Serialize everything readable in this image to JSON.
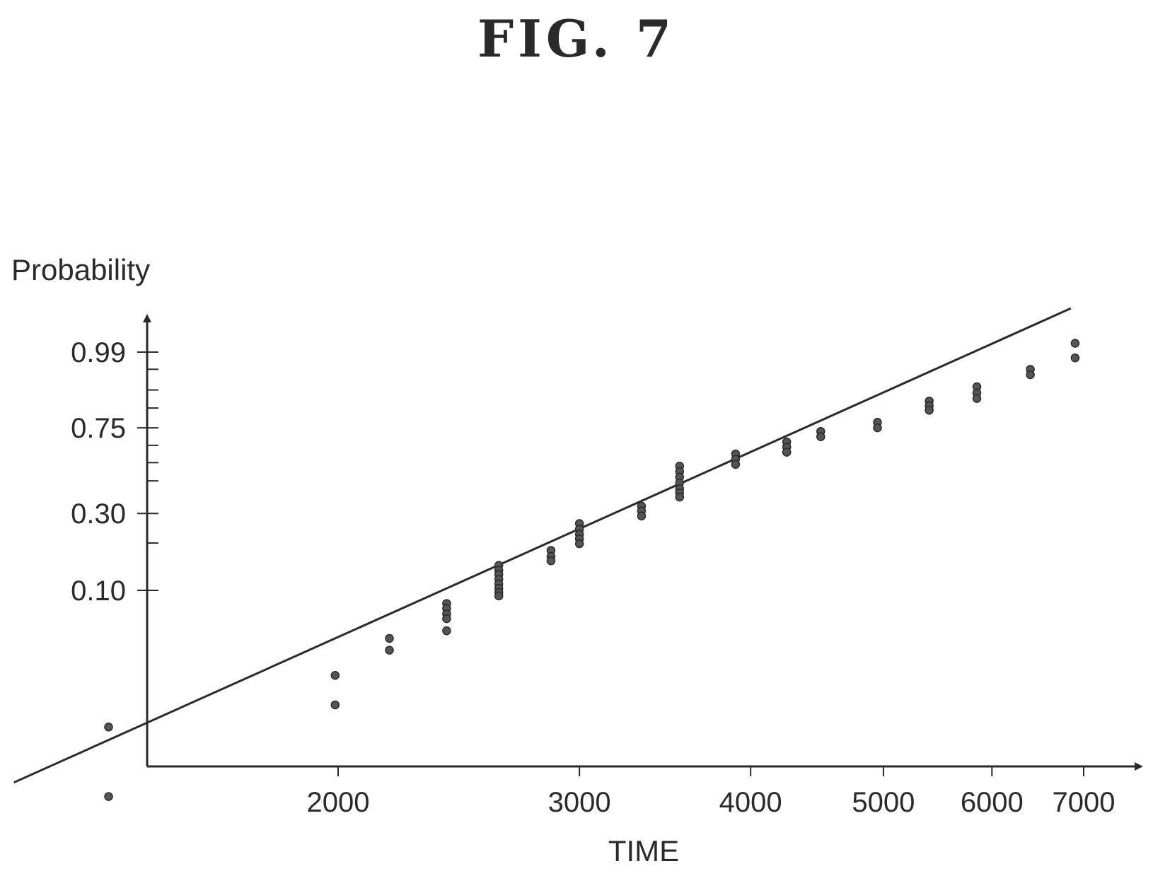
{
  "figure": {
    "title": "FIG. 7"
  },
  "chart_data": {
    "type": "scatter",
    "title": "",
    "xlabel": "TIME",
    "ylabel": "Probability",
    "x_scale": "log",
    "y_scale": "probability",
    "x_ticks": [
      2000,
      3000,
      4000,
      5000,
      6000,
      7000
    ],
    "y_ticks": [
      0.1,
      0.3,
      0.75,
      0.99
    ],
    "y_tick_labels": [
      "0.10",
      "0.30",
      "0.75",
      "0.99"
    ],
    "x_tick_labels": [
      "2000",
      "3000",
      "4000",
      "5000",
      "6000",
      "7000"
    ],
    "grid": false,
    "legend": "none",
    "series": [
      {
        "points": [
          [
            1360,
            0.012
          ],
          [
            1360,
            0.004
          ],
          [
            1990,
            0.027
          ],
          [
            1990,
            0.017
          ],
          [
            2180,
            0.048
          ],
          [
            2180,
            0.04
          ],
          [
            2400,
            0.082
          ],
          [
            2400,
            0.076
          ],
          [
            2400,
            0.07
          ],
          [
            2400,
            0.065
          ],
          [
            2400,
            0.054
          ],
          [
            2620,
            0.145
          ],
          [
            2620,
            0.135
          ],
          [
            2620,
            0.127
          ],
          [
            2620,
            0.118
          ],
          [
            2620,
            0.11
          ],
          [
            2620,
            0.103
          ],
          [
            2620,
            0.097
          ],
          [
            2620,
            0.092
          ],
          [
            2860,
            0.18
          ],
          [
            2860,
            0.165
          ],
          [
            2860,
            0.155
          ],
          [
            3000,
            0.262
          ],
          [
            3000,
            0.243
          ],
          [
            3000,
            0.226
          ],
          [
            3000,
            0.212
          ],
          [
            3000,
            0.198
          ],
          [
            3330,
            0.33
          ],
          [
            3330,
            0.31
          ],
          [
            3330,
            0.29
          ],
          [
            3550,
            0.53
          ],
          [
            3550,
            0.5
          ],
          [
            3550,
            0.47
          ],
          [
            3550,
            0.44
          ],
          [
            3550,
            0.41
          ],
          [
            3550,
            0.39
          ],
          [
            3550,
            0.37
          ],
          [
            3900,
            0.6
          ],
          [
            3900,
            0.57
          ],
          [
            3900,
            0.54
          ],
          [
            4250,
            0.67
          ],
          [
            4250,
            0.64
          ],
          [
            4250,
            0.61
          ],
          [
            4500,
            0.73
          ],
          [
            4500,
            0.7
          ],
          [
            4950,
            0.78
          ],
          [
            4950,
            0.75
          ],
          [
            5400,
            0.88
          ],
          [
            5400,
            0.86
          ],
          [
            5400,
            0.84
          ],
          [
            5850,
            0.93
          ],
          [
            5850,
            0.91
          ],
          [
            5850,
            0.89
          ],
          [
            6400,
            0.97
          ],
          [
            6400,
            0.96
          ],
          [
            6900,
            0.995
          ],
          [
            6900,
            0.985
          ]
        ]
      }
    ],
    "fit_line": {
      "x": [
        1160,
        6850
      ],
      "y": [
        0.005,
        1.0
      ]
    }
  }
}
